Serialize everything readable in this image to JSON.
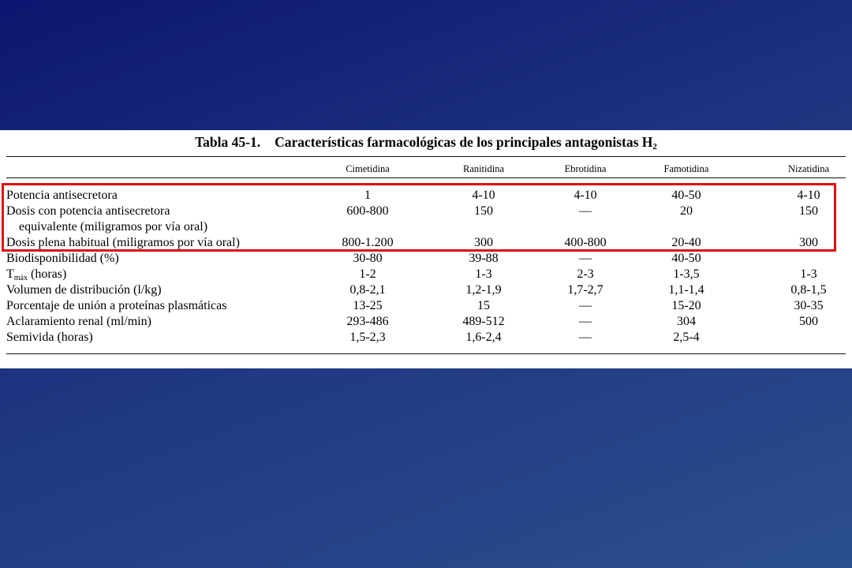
{
  "table": {
    "number": "Tabla 45-1.",
    "title": "Características farmacológicas de los principales antagonistas H",
    "title_subscript": "2",
    "columns": [
      "Cimetidina",
      "Ranitidina",
      "Ebrotidina",
      "Famotidina",
      "Nizatidina"
    ],
    "rows": [
      {
        "label": "Potencia antisecretora",
        "values": [
          "1",
          "4-10",
          "4-10",
          "40-50",
          "4-10"
        ]
      },
      {
        "label": "Dosis con potencia antisecretora",
        "values": [
          "600-800",
          "150",
          "—",
          "20",
          "150"
        ]
      },
      {
        "label": "equivalente (miligramos por vía oral)",
        "values": [
          "",
          "",
          "",
          "",
          ""
        ]
      },
      {
        "label": "Dosis plena habitual (miligramos por vía oral)",
        "values": [
          "800-1.200",
          "300",
          "400-800",
          "20-40",
          "300"
        ]
      },
      {
        "label": "Biodisponibilidad (%)",
        "values": [
          "30-80",
          "39-88",
          "—",
          "40-50",
          ""
        ]
      },
      {
        "label": "T",
        "label_subscript": "máx",
        "label_suffix": " (horas)",
        "values": [
          "1-2",
          "1-3",
          "2-3",
          "1-3,5",
          "1-3"
        ]
      },
      {
        "label": "Volumen de distribución (l/kg)",
        "values": [
          "0,8-2,1",
          "1,2-1,9",
          "1,7-2,7",
          "1,1-1,4",
          "0,8-1,5"
        ]
      },
      {
        "label": "Porcentaje de unión a proteínas plasmáticas",
        "values": [
          "13-25",
          "15",
          "—",
          "15-20",
          "30-35"
        ]
      },
      {
        "label": "Aclaramiento renal (ml/min)",
        "values": [
          "293-486",
          "489-512",
          "—",
          "304",
          "500"
        ]
      },
      {
        "label": "Semivida (horas)",
        "values": [
          "1,5-2,3",
          "1,6-2,4",
          "—",
          "2,5-4",
          ""
        ]
      }
    ]
  },
  "colors": {
    "highlight": "#e01010",
    "background_top": "#0c1670",
    "background_bottom": "#2b4f8f"
  }
}
